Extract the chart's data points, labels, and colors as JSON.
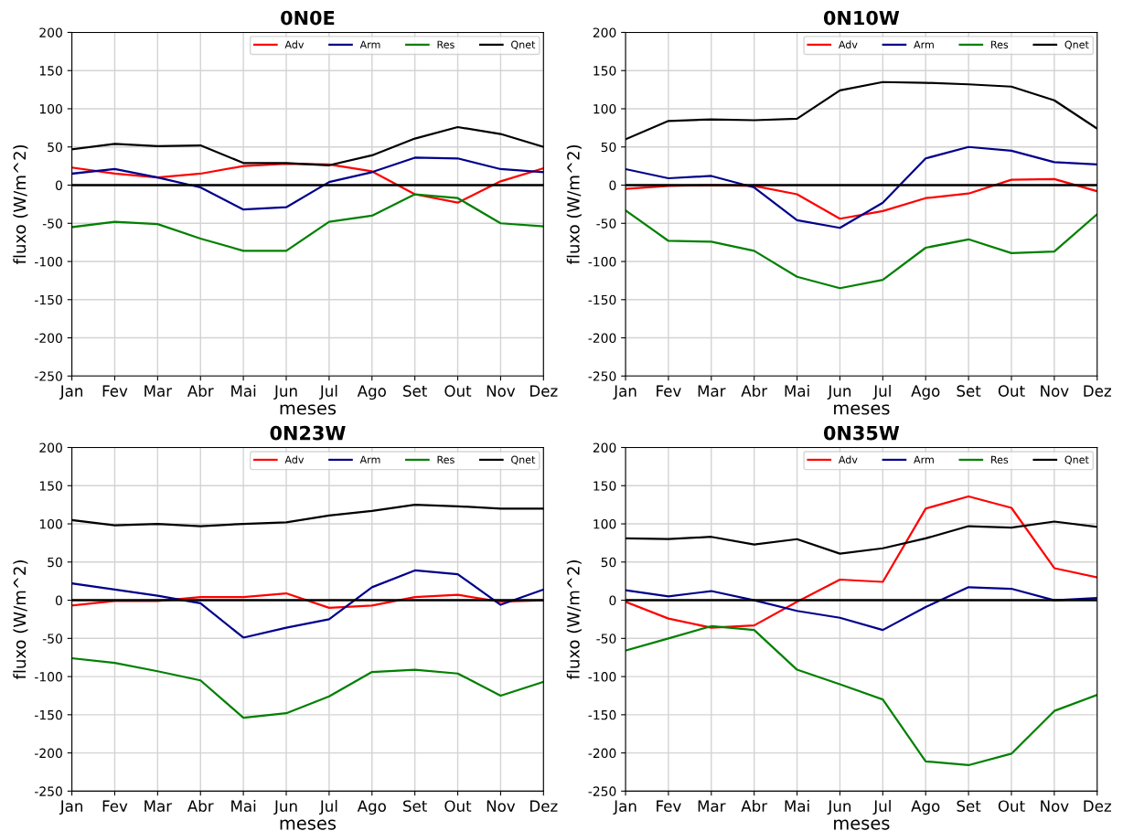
{
  "chart_data": [
    {
      "type": "line",
      "title": "0N0E",
      "xlabel": "meses",
      "ylabel": "fluxo (W/m^2)",
      "categories": [
        "Jan",
        "Fev",
        "Mar",
        "Abr",
        "Mai",
        "Jun",
        "Jul",
        "Ago",
        "Set",
        "Out",
        "Nov",
        "Dez"
      ],
      "series": [
        {
          "name": "Adv",
          "color": "#ff0000",
          "values": [
            23,
            15,
            10,
            15,
            25,
            28,
            27,
            18,
            -12,
            -23,
            5,
            22
          ]
        },
        {
          "name": "Arm",
          "color": "#00008b",
          "values": [
            15,
            21,
            10,
            -3,
            -32,
            -29,
            4,
            17,
            36,
            35,
            21,
            17
          ]
        },
        {
          "name": "Res",
          "color": "#008000",
          "values": [
            -55,
            -48,
            -51,
            -70,
            -86,
            -86,
            -48,
            -40,
            -12,
            -17,
            -50,
            -54
          ]
        },
        {
          "name": "Qnet",
          "color": "#000000",
          "values": [
            47,
            54,
            51,
            52,
            29,
            29,
            26,
            39,
            61,
            76,
            67,
            50
          ]
        }
      ],
      "ylim": [
        -250,
        200
      ],
      "yticks": [
        -250,
        -200,
        -150,
        -100,
        -50,
        0,
        50,
        100,
        150,
        200
      ],
      "ref_lines": [
        {
          "axis": "y",
          "value": 0,
          "color": "#000000"
        }
      ],
      "grid": true,
      "legend": "top right"
    },
    {
      "type": "line",
      "title": "0N10W",
      "xlabel": "meses",
      "ylabel": "fluxo (W/m^2)",
      "categories": [
        "Jan",
        "Fev",
        "Mar",
        "Abr",
        "Mai",
        "Jun",
        "Jul",
        "Ago",
        "Set",
        "Out",
        "Nov",
        "Dez"
      ],
      "series": [
        {
          "name": "Adv",
          "color": "#ff0000",
          "values": [
            -5,
            -1,
            0,
            -1,
            -12,
            -44,
            -34,
            -17,
            -11,
            7,
            8,
            -8
          ]
        },
        {
          "name": "Arm",
          "color": "#00008b",
          "values": [
            21,
            9,
            12,
            -3,
            -46,
            -56,
            -23,
            35,
            50,
            45,
            30,
            27
          ]
        },
        {
          "name": "Res",
          "color": "#008000",
          "values": [
            -33,
            -73,
            -74,
            -86,
            -120,
            -135,
            -124,
            -82,
            -71,
            -89,
            -87,
            -38
          ]
        },
        {
          "name": "Qnet",
          "color": "#000000",
          "values": [
            60,
            84,
            86,
            85,
            87,
            124,
            135,
            134,
            132,
            129,
            111,
            74
          ]
        }
      ],
      "ylim": [
        -250,
        200
      ],
      "yticks": [
        -250,
        -200,
        -150,
        -100,
        -50,
        0,
        50,
        100,
        150,
        200
      ],
      "ref_lines": [
        {
          "axis": "y",
          "value": 0,
          "color": "#000000"
        }
      ],
      "grid": true,
      "legend": "top right"
    },
    {
      "type": "line",
      "title": "0N23W",
      "xlabel": "meses",
      "ylabel": "fluxo (W/m^2)",
      "categories": [
        "Jan",
        "Fev",
        "Mar",
        "Abr",
        "Mai",
        "Jun",
        "Jul",
        "Ago",
        "Set",
        "Out",
        "Nov",
        "Dez"
      ],
      "series": [
        {
          "name": "Adv",
          "color": "#ff0000",
          "values": [
            -7,
            -1,
            -1,
            4,
            4,
            9,
            -10,
            -7,
            4,
            7,
            -2,
            0
          ]
        },
        {
          "name": "Arm",
          "color": "#00008b",
          "values": [
            22,
            14,
            6,
            -4,
            -49,
            -36,
            -25,
            17,
            39,
            34,
            -6,
            14
          ]
        },
        {
          "name": "Res",
          "color": "#008000",
          "values": [
            -76,
            -82,
            -93,
            -105,
            -154,
            -148,
            -126,
            -94,
            -91,
            -96,
            -125,
            -107
          ]
        },
        {
          "name": "Qnet",
          "color": "#000000",
          "values": [
            105,
            98,
            100,
            97,
            100,
            102,
            111,
            117,
            125,
            123,
            120,
            120
          ]
        }
      ],
      "ylim": [
        -250,
        200
      ],
      "yticks": [
        -250,
        -200,
        -150,
        -100,
        -50,
        0,
        50,
        100,
        150,
        200
      ],
      "ref_lines": [
        {
          "axis": "y",
          "value": 0,
          "color": "#000000"
        }
      ],
      "grid": true,
      "legend": "top right"
    },
    {
      "type": "line",
      "title": "0N35W",
      "xlabel": "meses",
      "ylabel": "fluxo (W/m^2)",
      "categories": [
        "Jan",
        "Fev",
        "Mar",
        "Abr",
        "Mai",
        "Jun",
        "Jul",
        "Ago",
        "Set",
        "Out",
        "Nov",
        "Dez"
      ],
      "series": [
        {
          "name": "Adv",
          "color": "#ff0000",
          "values": [
            -2,
            -24,
            -36,
            -33,
            -2,
            27,
            24,
            120,
            136,
            121,
            42,
            30
          ]
        },
        {
          "name": "Arm",
          "color": "#00008b",
          "values": [
            13,
            5,
            12,
            0,
            -14,
            -23,
            -39,
            -9,
            17,
            15,
            0,
            3
          ]
        },
        {
          "name": "Res",
          "color": "#008000",
          "values": [
            -66,
            -50,
            -34,
            -39,
            -91,
            -110,
            -130,
            -211,
            -216,
            -201,
            -145,
            -124
          ]
        },
        {
          "name": "Qnet",
          "color": "#000000",
          "values": [
            81,
            80,
            83,
            73,
            80,
            61,
            68,
            81,
            97,
            95,
            103,
            96
          ]
        }
      ],
      "ylim": [
        -250,
        200
      ],
      "yticks": [
        -250,
        -200,
        -150,
        -100,
        -50,
        0,
        50,
        100,
        150,
        200
      ],
      "ref_lines": [
        {
          "axis": "y",
          "value": 0,
          "color": "#000000"
        }
      ],
      "grid": true,
      "legend": "top right"
    }
  ]
}
